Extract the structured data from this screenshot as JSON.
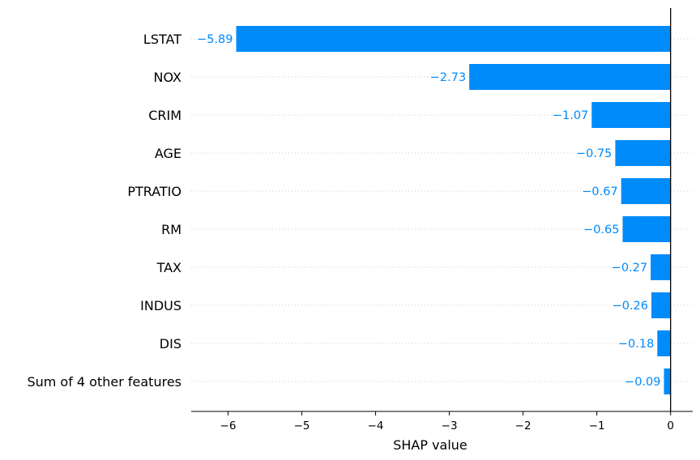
{
  "chart_data": {
    "type": "bar",
    "orientation": "horizontal",
    "categories": [
      "LSTAT",
      "NOX",
      "CRIM",
      "AGE",
      "PTRATIO",
      "RM",
      "TAX",
      "INDUS",
      "DIS",
      "Sum of 4 other features"
    ],
    "values": [
      -5.89,
      -2.73,
      -1.07,
      -0.75,
      -0.67,
      -0.65,
      -0.27,
      -0.26,
      -0.18,
      -0.09
    ],
    "value_labels": [
      "−5.89",
      "−2.73",
      "−1.07",
      "−0.75",
      "−0.67",
      "−0.65",
      "−0.27",
      "−0.26",
      "−0.18",
      "−0.09"
    ],
    "xlabel": "SHAP value",
    "ylabel": "",
    "title": "",
    "xlim": [
      -6.5,
      0.3
    ],
    "xticks": [
      -6,
      -5,
      -4,
      -3,
      -2,
      -1,
      0
    ],
    "xtick_labels": [
      "−6",
      "−5",
      "−4",
      "−3",
      "−2",
      "−1",
      "0"
    ],
    "grid": "dotted horizontal guide lines per row",
    "legend": "none",
    "colors": {
      "bar": "#008bfb",
      "value_text": "#008bfb",
      "zero_line": "#000000",
      "guide_line": "#cccccc"
    }
  }
}
